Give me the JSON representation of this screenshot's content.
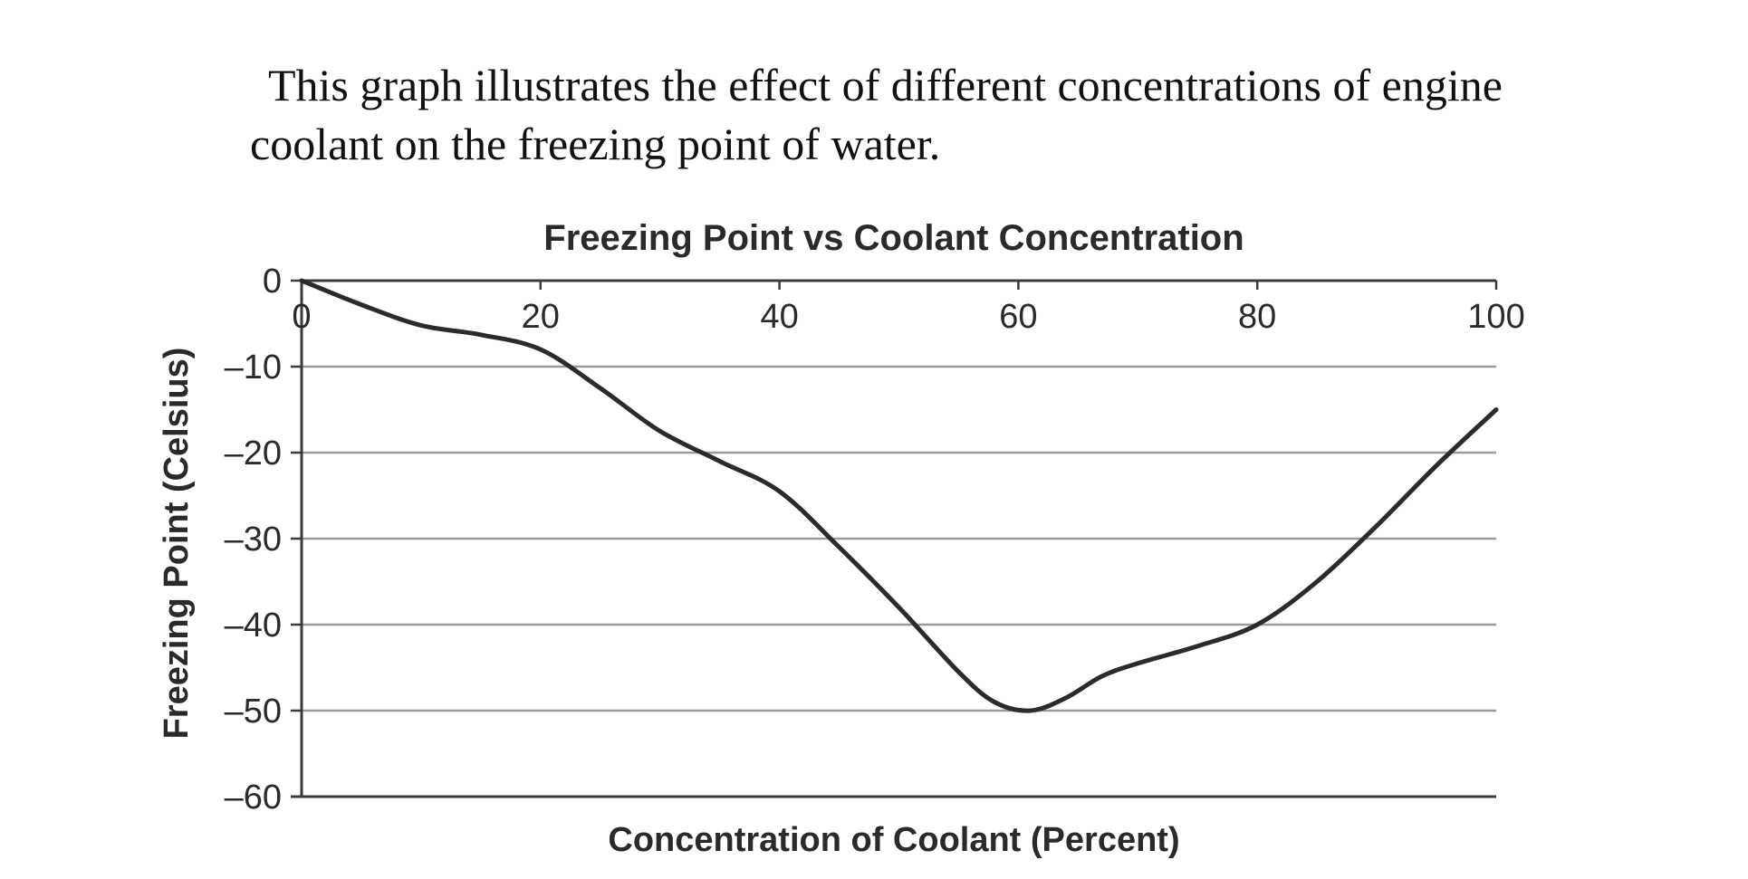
{
  "intro_text": "This graph illustrates the effect of different concentrations of engine coolant on the freezing point of water.",
  "colors": {
    "line": "#2b2b2b",
    "grid": "#9a9a9a",
    "axis": "#3a3a3a",
    "text": "#2a2a2a"
  },
  "chart_data": {
    "type": "line",
    "title": "Freezing Point vs Coolant Concentration",
    "xlabel": "Concentration of Coolant (Percent)",
    "ylabel": "Freezing Point (Celsius)",
    "xlim": [
      0,
      100
    ],
    "ylim": [
      -60,
      0
    ],
    "x_ticks": [
      0,
      20,
      40,
      60,
      80,
      100
    ],
    "x_tick_labels": [
      "0",
      "20",
      "40",
      "60",
      "80",
      "100"
    ],
    "y_ticks": [
      0,
      -10,
      -20,
      -30,
      -40,
      -50,
      -60
    ],
    "y_tick_labels": [
      "0",
      "–10",
      "–20",
      "–30",
      "–40",
      "–50",
      "–60"
    ],
    "x_axis_position": "top",
    "grid": true,
    "legend": "none",
    "series": [
      {
        "x": [
          0,
          5,
          10,
          15,
          20,
          25,
          30,
          35,
          40,
          45,
          50,
          55,
          58,
          61,
          64,
          67,
          70,
          75,
          80,
          85,
          90,
          95,
          100
        ],
        "values": [
          0,
          -2.8,
          -5.2,
          -6.3,
          -8,
          -12.5,
          -17.5,
          -21,
          -24.5,
          -31,
          -38,
          -45.5,
          -49,
          -50,
          -48.5,
          -46,
          -44.5,
          -42.5,
          -40,
          -35,
          -28.5,
          -21.5,
          -15
        ]
      }
    ]
  }
}
